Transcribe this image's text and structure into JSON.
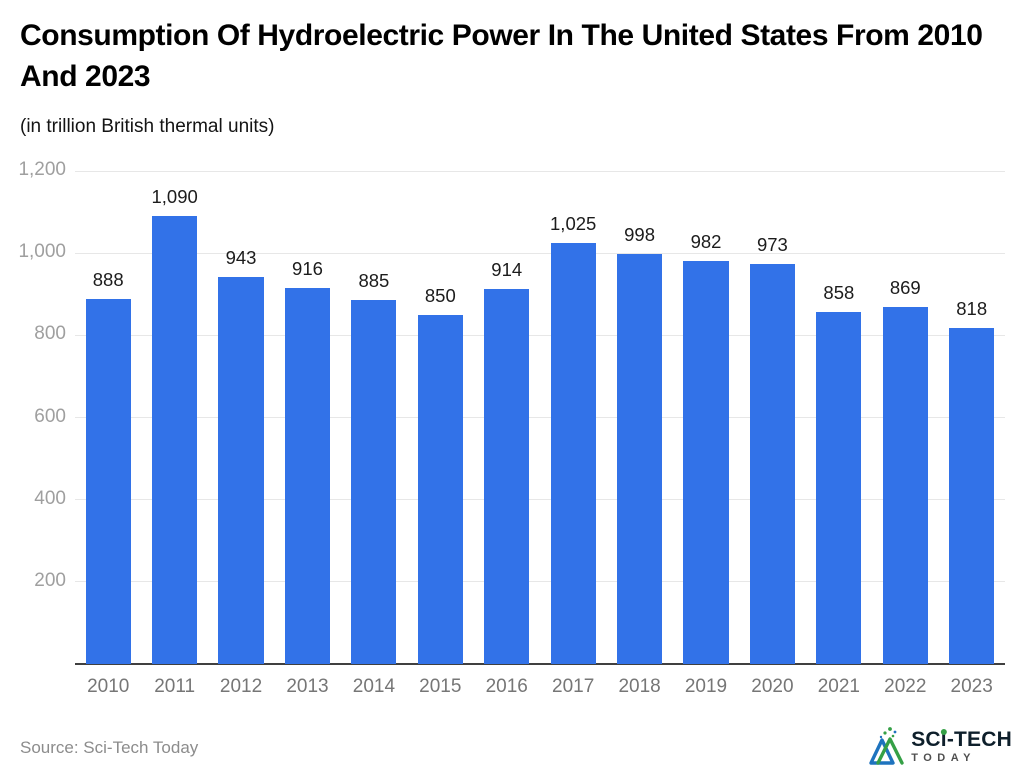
{
  "header": {
    "title": "Consumption Of Hydroelectric Power In The United States From 2010 And 2023",
    "subtitle": "(in trillion British thermal units)"
  },
  "chart_data": {
    "type": "bar",
    "categories": [
      "2010",
      "2011",
      "2012",
      "2013",
      "2014",
      "2015",
      "2016",
      "2017",
      "2018",
      "2019",
      "2020",
      "2021",
      "2022",
      "2023"
    ],
    "values": [
      888,
      1090,
      943,
      916,
      885,
      850,
      914,
      1025,
      998,
      982,
      973,
      858,
      869,
      818
    ],
    "value_labels": [
      "888",
      "1,090",
      "943",
      "916",
      "885",
      "850",
      "914",
      "1,025",
      "998",
      "982",
      "973",
      "858",
      "869",
      "818"
    ],
    "title": "Consumption Of Hydroelectric Power In The United States From 2010 And 2023",
    "subtitle": "(in trillion British thermal units)",
    "xlabel": "",
    "ylabel": "",
    "ylim": [
      0,
      1200
    ],
    "yticks": [
      200,
      400,
      600,
      800,
      1000,
      1200
    ],
    "ytick_labels": [
      "200",
      "400",
      "600",
      "800",
      "1,000",
      "1,200"
    ],
    "grid": true,
    "legend": "none",
    "bar_color": "#3272E8"
  },
  "footer": {
    "source_label": "Source: Sci-Tech Today",
    "logo": {
      "brand_part1": "SC",
      "brand_part2": "i",
      "brand_part3": "-TECH",
      "brand_bottom": "TODAY"
    }
  },
  "colors": {
    "bar": "#3272E8",
    "gridline": "#e7e7e7",
    "axis_line": "#404040",
    "y_label": "#9f9f9f",
    "x_label": "#767676",
    "value_label": "#1c1c1c",
    "title": "#000000",
    "source": "#8c8c8c",
    "logo_blue": "#1E73BE",
    "logo_green": "#35A046"
  }
}
